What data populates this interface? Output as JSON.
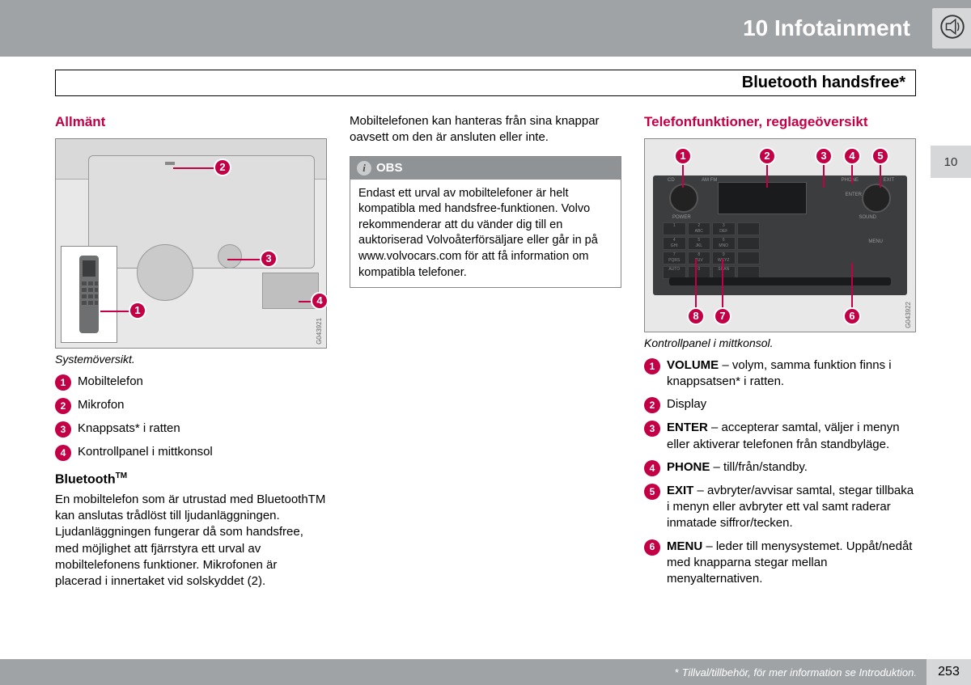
{
  "header": {
    "chapter_title": "10 Infotainment",
    "section_title": "Bluetooth handsfree*"
  },
  "side_tab": "10",
  "col1": {
    "heading": "Allmänt",
    "figure_caption": "Systemöversikt.",
    "img_code": "G043921",
    "callouts": {
      "c1": "1",
      "c2": "2",
      "c3": "3",
      "c4": "4"
    },
    "legend": [
      {
        "n": "1",
        "text": "Mobiltelefon"
      },
      {
        "n": "2",
        "text": "Mikrofon"
      },
      {
        "n": "3",
        "text": "Knappsats* i ratten"
      },
      {
        "n": "4",
        "text": "Kontrollpanel i mittkonsol"
      }
    ],
    "sub_heading_html": "Bluetooth",
    "sub_heading_sup": "TM",
    "body": "En mobiltelefon som är utrustad med BluetoothTM kan anslutas trådlöst till ljudanläggningen. Ljudanläggningen fungerar då som handsfree, med möjlighet att fjärrstyra ett urval av mobiltelefonens funktioner. Mikrofonen är placerad i innertaket vid solskyddet (2)."
  },
  "col2": {
    "body": "Mobiltelefonen kan hanteras från sina knappar oavsett om den är ansluten eller inte.",
    "obs_title": "OBS",
    "obs_body": "Endast ett urval av mobiltelefoner är helt kompatibla med handsfree-funktionen. Volvo rekommenderar att du vänder dig till en auktoriserad Volvoåterförsäljare eller går in på www.volvocars.com för att få information om kompatibla telefoner."
  },
  "col3": {
    "heading": "Telefonfunktioner, reglageöversikt",
    "figure_caption": "Kontrollpanel i mittkonsol.",
    "img_code": "G043922",
    "callouts": {
      "c1": "1",
      "c2": "2",
      "c3": "3",
      "c4": "4",
      "c5": "5",
      "c6": "6",
      "c7": "7",
      "c8": "8"
    },
    "legend": [
      {
        "n": "1",
        "bold": "VOLUME",
        "text": " – volym, samma funktion finns i knappsatsen* i ratten."
      },
      {
        "n": "2",
        "bold": "",
        "text": "Display"
      },
      {
        "n": "3",
        "bold": "ENTER",
        "text": " – accepterar samtal, väljer i menyn eller aktiverar telefonen från standbyläge."
      },
      {
        "n": "4",
        "bold": "PHONE",
        "text": " – till/från/standby."
      },
      {
        "n": "5",
        "bold": "EXIT",
        "text": " – avbryter/avvisar samtal, stegar tillbaka i menyn eller avbryter ett val samt raderar inmatade siffror/tecken."
      },
      {
        "n": "6",
        "bold": "MENU",
        "text": " – leder till menysystemet. Uppåt/nedåt med knapparna stegar mellan menyalternativen."
      }
    ]
  },
  "footer": {
    "note_ast": "*",
    "note": " Tillval/tillbehör, för mer information se Introduktion.",
    "page": "253"
  },
  "colors": {
    "accent": "#c30045",
    "header_bg": "#9fa3a6",
    "tab_bg": "#d6d7d8"
  }
}
